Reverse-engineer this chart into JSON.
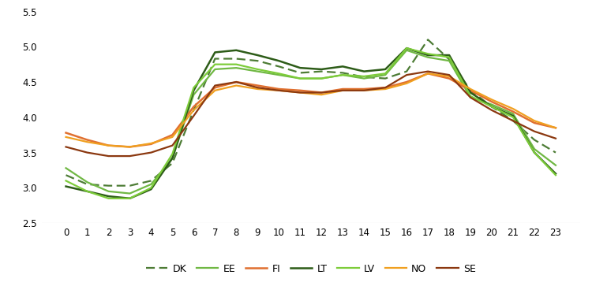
{
  "hours": [
    0,
    1,
    2,
    3,
    4,
    5,
    6,
    7,
    8,
    9,
    10,
    11,
    12,
    13,
    14,
    15,
    16,
    17,
    18,
    19,
    20,
    21,
    22,
    23
  ],
  "series": {
    "DK": [
      3.18,
      3.05,
      3.03,
      3.03,
      3.1,
      3.35,
      4.1,
      4.83,
      4.83,
      4.8,
      4.72,
      4.63,
      4.65,
      4.63,
      4.57,
      4.55,
      4.65,
      5.1,
      4.82,
      4.38,
      4.15,
      3.95,
      3.68,
      3.5
    ],
    "EE": [
      3.28,
      3.08,
      2.95,
      2.92,
      3.05,
      3.42,
      4.32,
      4.68,
      4.7,
      4.65,
      4.6,
      4.55,
      4.55,
      4.6,
      4.55,
      4.6,
      4.95,
      4.85,
      4.8,
      4.28,
      4.18,
      4.05,
      3.55,
      3.32
    ],
    "FI": [
      3.78,
      3.68,
      3.6,
      3.58,
      3.62,
      3.75,
      4.15,
      4.42,
      4.5,
      4.45,
      4.4,
      4.38,
      4.35,
      4.4,
      4.4,
      4.42,
      4.5,
      4.62,
      4.55,
      4.38,
      4.22,
      4.08,
      3.92,
      3.85
    ],
    "LT": [
      3.02,
      2.95,
      2.88,
      2.85,
      2.98,
      3.42,
      4.38,
      4.92,
      4.95,
      4.88,
      4.8,
      4.7,
      4.68,
      4.72,
      4.65,
      4.68,
      4.98,
      4.88,
      4.88,
      4.35,
      4.15,
      4.02,
      3.5,
      3.2
    ],
    "LV": [
      3.1,
      2.95,
      2.85,
      2.85,
      3.0,
      3.48,
      4.42,
      4.75,
      4.75,
      4.68,
      4.62,
      4.55,
      4.55,
      4.6,
      4.58,
      4.62,
      4.98,
      4.9,
      4.85,
      4.3,
      4.15,
      4.0,
      3.5,
      3.18
    ],
    "NO": [
      3.72,
      3.65,
      3.6,
      3.58,
      3.63,
      3.72,
      4.1,
      4.38,
      4.45,
      4.4,
      4.38,
      4.35,
      4.32,
      4.38,
      4.38,
      4.4,
      4.48,
      4.62,
      4.58,
      4.4,
      4.25,
      4.12,
      3.95,
      3.85
    ],
    "SE": [
      3.58,
      3.5,
      3.45,
      3.45,
      3.5,
      3.6,
      4.02,
      4.45,
      4.5,
      4.42,
      4.38,
      4.35,
      4.35,
      4.38,
      4.38,
      4.42,
      4.6,
      4.65,
      4.6,
      4.28,
      4.1,
      3.95,
      3.8,
      3.7
    ]
  },
  "colors": {
    "DK": "#4d7c35",
    "EE": "#70b844",
    "FI": "#e07030",
    "LT": "#2d5c18",
    "LV": "#7dcc3a",
    "NO": "#f0a020",
    "SE": "#8b3810"
  },
  "linewidths": {
    "DK": 1.6,
    "EE": 1.6,
    "FI": 1.8,
    "LT": 1.8,
    "LV": 1.6,
    "NO": 1.6,
    "SE": 1.6
  },
  "ylim": [
    2.5,
    5.5
  ],
  "yticks": [
    2.5,
    3.0,
    3.5,
    4.0,
    4.5,
    5.0,
    5.5
  ],
  "background_color": "#ffffff"
}
